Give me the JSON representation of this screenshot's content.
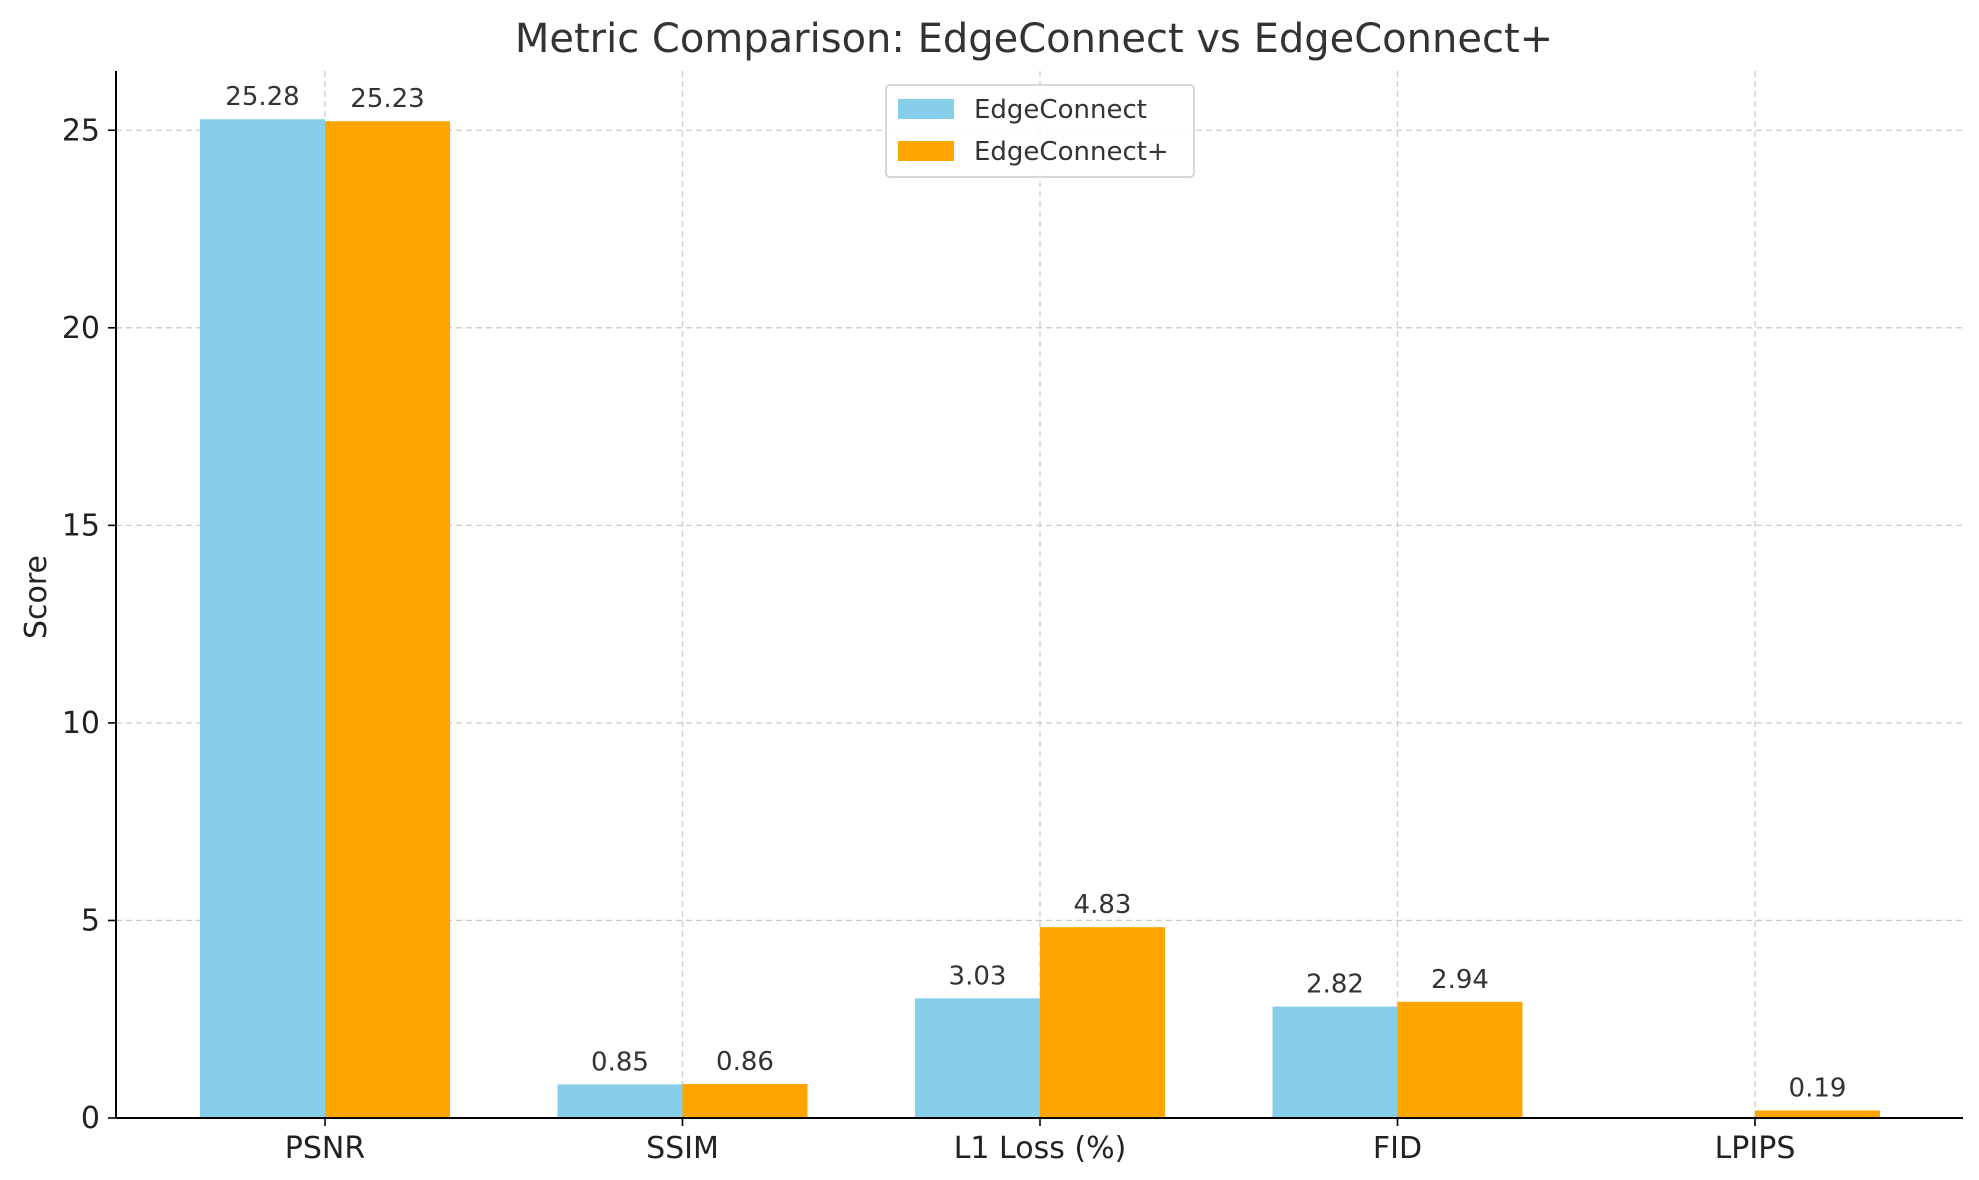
{
  "chart_data": {
    "type": "bar",
    "title": "Metric Comparison: EdgeConnect vs EdgeConnect+",
    "xlabel": "",
    "ylabel": "Score",
    "categories": [
      "PSNR",
      "SSIM",
      "L1 Loss (%)",
      "FID",
      "LPIPS"
    ],
    "series": [
      {
        "name": "EdgeConnect",
        "color": "#87CEEB",
        "values": [
          25.28,
          0.85,
          3.03,
          2.82,
          null
        ],
        "labels": [
          "25.28",
          "0.85",
          "3.03",
          "2.82",
          ""
        ]
      },
      {
        "name": "EdgeConnect+",
        "color": "#FFA500",
        "values": [
          25.23,
          0.86,
          4.83,
          2.94,
          0.19
        ],
        "labels": [
          "25.23",
          "0.86",
          "4.83",
          "2.94",
          "0.19"
        ]
      }
    ],
    "ylim": [
      0,
      26.5
    ],
    "yticks": [
      0,
      5,
      10,
      15,
      20,
      25
    ],
    "ytick_labels": [
      "0",
      "5",
      "10",
      "15",
      "20",
      "25"
    ],
    "grid": true,
    "legend_position": "top-center"
  }
}
